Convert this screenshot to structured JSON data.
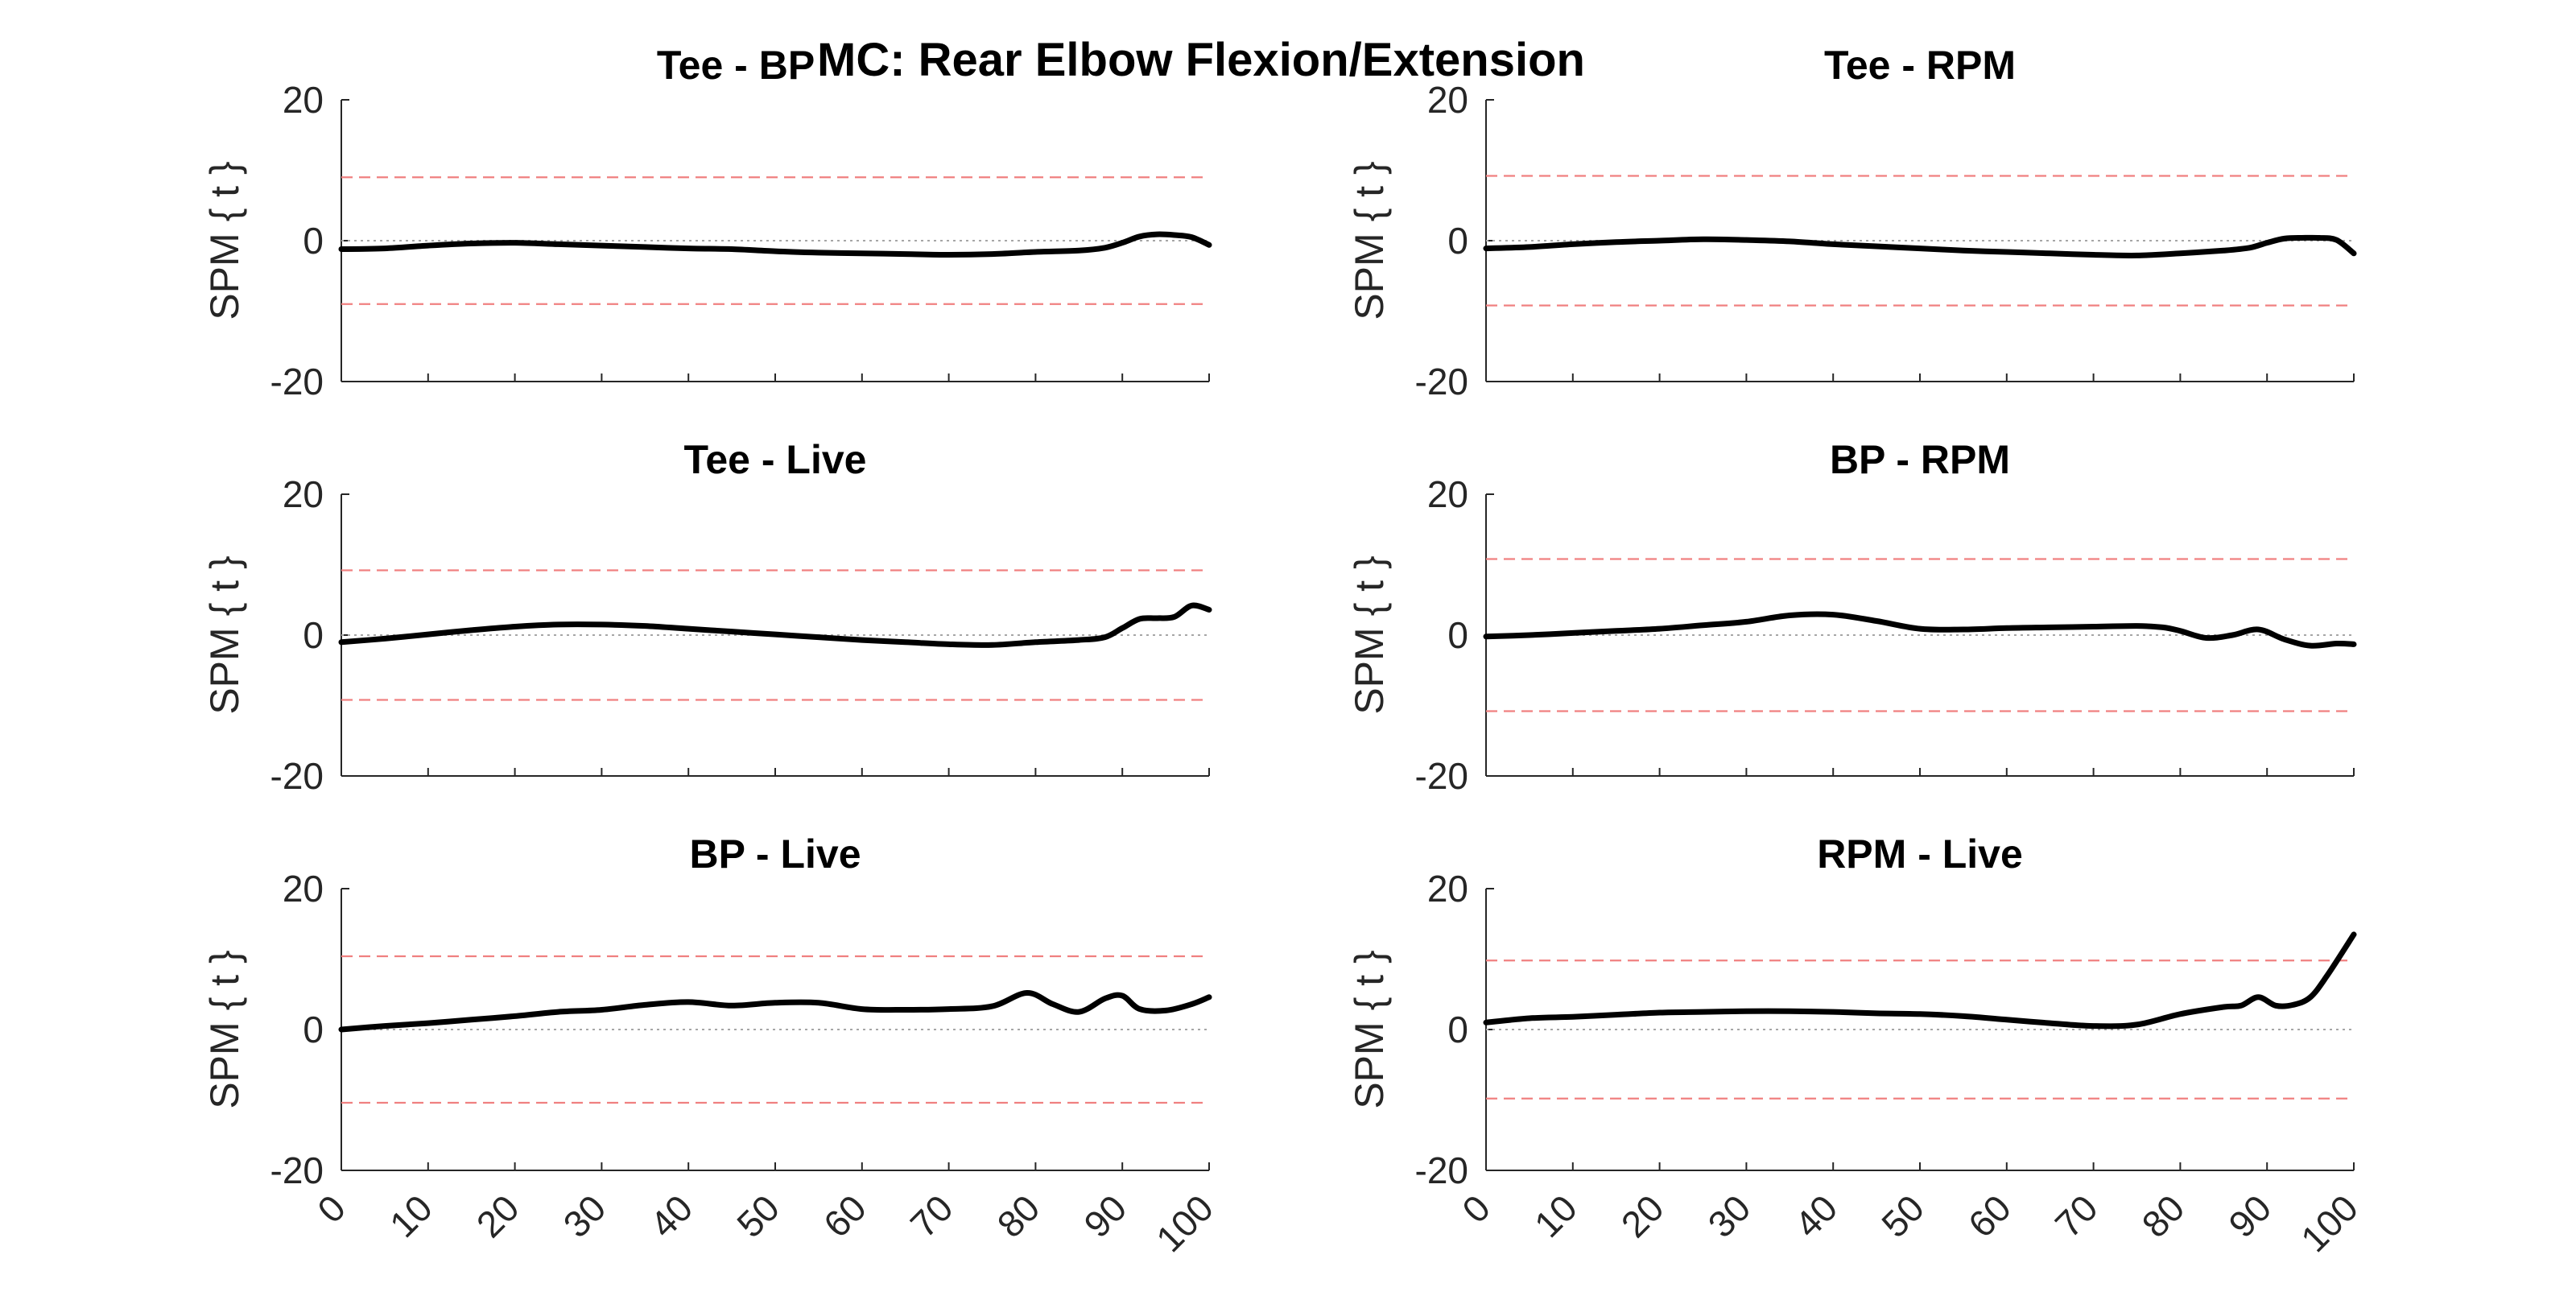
{
  "figure": {
    "suptitle": "MC: Rear Elbow Flexion/Extension",
    "colors": {
      "series": "#000000",
      "threshold": "#f08080",
      "zero_line": "#a6a6a6",
      "axis": "#262626"
    }
  },
  "chart_data": [
    {
      "type": "line",
      "title": "Tee - BP",
      "ylabel": "SPM { t }",
      "xlabel": "",
      "xlim": [
        0,
        100
      ],
      "ylim": [
        -20,
        20
      ],
      "xticks": [
        0,
        10,
        20,
        30,
        40,
        50,
        60,
        70,
        80,
        90,
        100
      ],
      "yticks": [
        -20,
        0,
        20
      ],
      "threshold": 9.0,
      "x": [
        0,
        5,
        10,
        15,
        20,
        25,
        30,
        35,
        40,
        45,
        50,
        55,
        60,
        65,
        70,
        75,
        80,
        85,
        88,
        90,
        92,
        94,
        96,
        98,
        100
      ],
      "series": [
        {
          "values": [
            -1.2,
            -1.1,
            -0.7,
            -0.4,
            -0.3,
            -0.5,
            -0.7,
            -0.9,
            -1.1,
            -1.2,
            -1.5,
            -1.7,
            -1.8,
            -1.9,
            -2.0,
            -1.9,
            -1.6,
            -1.4,
            -1.0,
            -0.3,
            0.6,
            0.9,
            0.8,
            0.5,
            -0.6
          ]
        }
      ]
    },
    {
      "type": "line",
      "title": "Tee - RPM",
      "ylabel": "SPM { t }",
      "xlabel": "",
      "xlim": [
        0,
        100
      ],
      "ylim": [
        -20,
        20
      ],
      "xticks": [
        0,
        10,
        20,
        30,
        40,
        50,
        60,
        70,
        80,
        90,
        100
      ],
      "yticks": [
        -20,
        0,
        20
      ],
      "threshold": 9.2,
      "x": [
        0,
        5,
        10,
        15,
        20,
        25,
        30,
        35,
        40,
        45,
        50,
        55,
        60,
        65,
        70,
        75,
        80,
        85,
        88,
        90,
        92,
        94,
        96,
        98,
        100
      ],
      "series": [
        {
          "values": [
            -1.1,
            -0.9,
            -0.5,
            -0.2,
            0.0,
            0.2,
            0.1,
            -0.1,
            -0.5,
            -0.8,
            -1.1,
            -1.4,
            -1.6,
            -1.8,
            -2.0,
            -2.1,
            -1.8,
            -1.4,
            -1.0,
            -0.3,
            0.3,
            0.4,
            0.4,
            0.1,
            -1.8
          ]
        }
      ]
    },
    {
      "type": "line",
      "title": "Tee - Live",
      "ylabel": "SPM { t }",
      "xlabel": "",
      "xlim": [
        0,
        100
      ],
      "ylim": [
        -20,
        20
      ],
      "xticks": [
        0,
        10,
        20,
        30,
        40,
        50,
        60,
        70,
        80,
        90,
        100
      ],
      "yticks": [
        -20,
        0,
        20
      ],
      "threshold": 9.2,
      "x": [
        0,
        5,
        10,
        15,
        20,
        25,
        30,
        35,
        40,
        45,
        50,
        55,
        60,
        65,
        70,
        75,
        80,
        85,
        88,
        90,
        92,
        94,
        96,
        98,
        100
      ],
      "series": [
        {
          "values": [
            -1.0,
            -0.5,
            0.1,
            0.7,
            1.2,
            1.5,
            1.5,
            1.3,
            0.9,
            0.5,
            0.1,
            -0.3,
            -0.7,
            -1.0,
            -1.3,
            -1.4,
            -1.0,
            -0.7,
            -0.3,
            1.0,
            2.3,
            2.4,
            2.6,
            4.2,
            3.6
          ]
        }
      ]
    },
    {
      "type": "line",
      "title": "BP - RPM",
      "ylabel": "SPM { t }",
      "xlabel": "",
      "xlim": [
        0,
        100
      ],
      "ylim": [
        -20,
        20
      ],
      "xticks": [
        0,
        10,
        20,
        30,
        40,
        50,
        60,
        70,
        80,
        90,
        100
      ],
      "yticks": [
        -20,
        0,
        20
      ],
      "threshold": 10.8,
      "x": [
        0,
        5,
        10,
        15,
        20,
        25,
        30,
        35,
        40,
        45,
        50,
        55,
        60,
        65,
        70,
        75,
        78,
        80,
        83,
        86,
        89,
        92,
        95,
        98,
        100
      ],
      "series": [
        {
          "values": [
            -0.2,
            0.0,
            0.3,
            0.6,
            0.9,
            1.4,
            1.9,
            2.8,
            2.9,
            2.0,
            0.9,
            0.8,
            1.0,
            1.1,
            1.2,
            1.3,
            1.1,
            0.6,
            -0.4,
            0.0,
            0.8,
            -0.6,
            -1.5,
            -1.2,
            -1.3
          ]
        }
      ]
    },
    {
      "type": "line",
      "title": "BP - Live",
      "ylabel": "SPM { t }",
      "xlabel": "",
      "xlim": [
        0,
        100
      ],
      "ylim": [
        -20,
        20
      ],
      "xticks": [
        0,
        10,
        20,
        30,
        40,
        50,
        60,
        70,
        80,
        90,
        100
      ],
      "yticks": [
        -20,
        0,
        20
      ],
      "threshold": 10.4,
      "x": [
        0,
        5,
        10,
        15,
        20,
        25,
        30,
        35,
        40,
        45,
        50,
        55,
        60,
        65,
        70,
        75,
        79,
        82,
        85,
        88,
        90,
        92,
        95,
        98,
        100
      ],
      "series": [
        {
          "values": [
            0.0,
            0.5,
            0.9,
            1.4,
            1.9,
            2.5,
            2.8,
            3.5,
            3.9,
            3.4,
            3.8,
            3.8,
            2.9,
            2.8,
            2.9,
            3.3,
            5.2,
            3.6,
            2.5,
            4.4,
            4.8,
            2.9,
            2.7,
            3.6,
            4.6
          ]
        }
      ]
    },
    {
      "type": "line",
      "title": "RPM - Live",
      "ylabel": "SPM { t }",
      "xlabel": "",
      "xlim": [
        0,
        100
      ],
      "ylim": [
        -20,
        20
      ],
      "xticks": [
        0,
        10,
        20,
        30,
        40,
        50,
        60,
        70,
        80,
        90,
        100
      ],
      "yticks": [
        -20,
        0,
        20
      ],
      "threshold": 9.8,
      "x": [
        0,
        5,
        10,
        15,
        20,
        25,
        30,
        35,
        40,
        45,
        50,
        55,
        60,
        65,
        70,
        75,
        80,
        85,
        87,
        89,
        91,
        93,
        95,
        97,
        100
      ],
      "series": [
        {
          "values": [
            1.0,
            1.6,
            1.8,
            2.1,
            2.4,
            2.5,
            2.6,
            2.6,
            2.5,
            2.3,
            2.2,
            1.9,
            1.4,
            0.9,
            0.5,
            0.7,
            2.2,
            3.2,
            3.4,
            4.6,
            3.4,
            3.5,
            4.6,
            7.8,
            13.5
          ]
        }
      ]
    }
  ]
}
